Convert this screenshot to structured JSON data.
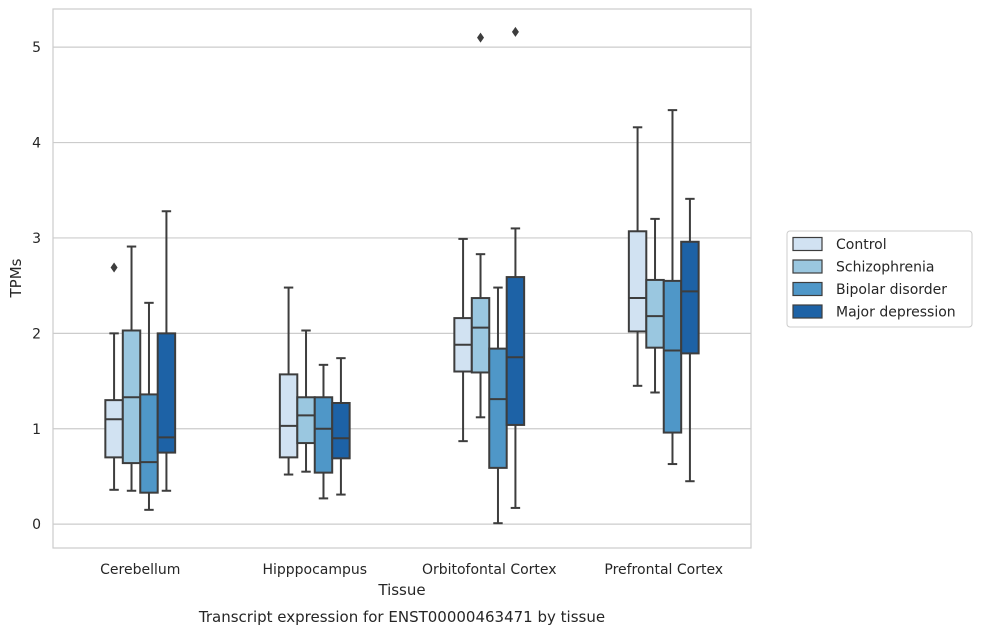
{
  "caption": "Transcript expression for ENST00000463471 by tissue",
  "chart_data": {
    "type": "box",
    "xlabel": "Tissue",
    "ylabel": "TPMs",
    "ylim": [
      -0.25,
      5.4
    ],
    "yticks": [
      0,
      1,
      2,
      3,
      4,
      5
    ],
    "ytick_labels": [
      "0",
      "1",
      "2",
      "3",
      "4",
      "5"
    ],
    "grid": "horizontal",
    "legend_position": "right",
    "categories": [
      "Cerebellum",
      "Hipppocampus",
      "Orbitofontal Cortex",
      "Prefrontal Cortex"
    ],
    "series": [
      {
        "name": "Control",
        "color": "#d1e2f2",
        "boxes": [
          {
            "whislo": 0.36,
            "q1": 0.7,
            "med": 1.1,
            "q3": 1.3,
            "whishi": 2.0,
            "fliers": [
              2.69
            ]
          },
          {
            "whislo": 0.52,
            "q1": 0.7,
            "med": 1.03,
            "q3": 1.57,
            "whishi": 2.48,
            "fliers": []
          },
          {
            "whislo": 0.87,
            "q1": 1.6,
            "med": 1.88,
            "q3": 2.16,
            "whishi": 2.99,
            "fliers": []
          },
          {
            "whislo": 1.45,
            "q1": 2.02,
            "med": 2.37,
            "q3": 3.07,
            "whishi": 4.16,
            "fliers": []
          }
        ]
      },
      {
        "name": "Schizophrenia",
        "color": "#9ac7e0",
        "boxes": [
          {
            "whislo": 0.35,
            "q1": 0.64,
            "med": 1.33,
            "q3": 2.03,
            "whishi": 2.91,
            "fliers": []
          },
          {
            "whislo": 0.55,
            "q1": 0.85,
            "med": 1.14,
            "q3": 1.33,
            "whishi": 2.03,
            "fliers": []
          },
          {
            "whislo": 1.12,
            "q1": 1.59,
            "med": 2.06,
            "q3": 2.37,
            "whishi": 2.83,
            "fliers": [
              5.1
            ]
          },
          {
            "whislo": 1.38,
            "q1": 1.85,
            "med": 2.18,
            "q3": 2.56,
            "whishi": 3.2,
            "fliers": []
          }
        ]
      },
      {
        "name": "Bipolar disorder",
        "color": "#4f97c8",
        "boxes": [
          {
            "whislo": 0.15,
            "q1": 0.33,
            "med": 0.65,
            "q3": 1.36,
            "whishi": 2.32,
            "fliers": []
          },
          {
            "whislo": 0.27,
            "q1": 0.54,
            "med": 1.0,
            "q3": 1.33,
            "whishi": 1.67,
            "fliers": []
          },
          {
            "whislo": 0.01,
            "q1": 0.59,
            "med": 1.31,
            "q3": 1.84,
            "whishi": 2.48,
            "fliers": []
          },
          {
            "whislo": 0.63,
            "q1": 0.96,
            "med": 1.82,
            "q3": 2.55,
            "whishi": 4.34,
            "fliers": []
          }
        ]
      },
      {
        "name": "Major depression",
        "color": "#1d62a6",
        "boxes": [
          {
            "whislo": 0.35,
            "q1": 0.75,
            "med": 0.91,
            "q3": 2.0,
            "whishi": 3.28,
            "fliers": []
          },
          {
            "whislo": 0.31,
            "q1": 0.69,
            "med": 0.9,
            "q3": 1.27,
            "whishi": 1.74,
            "fliers": []
          },
          {
            "whislo": 0.17,
            "q1": 1.04,
            "med": 1.75,
            "q3": 2.59,
            "whishi": 3.1,
            "fliers": [
              5.16
            ]
          },
          {
            "whislo": 0.45,
            "q1": 1.79,
            "med": 2.44,
            "q3": 2.96,
            "whishi": 3.41,
            "fliers": []
          }
        ]
      }
    ]
  }
}
